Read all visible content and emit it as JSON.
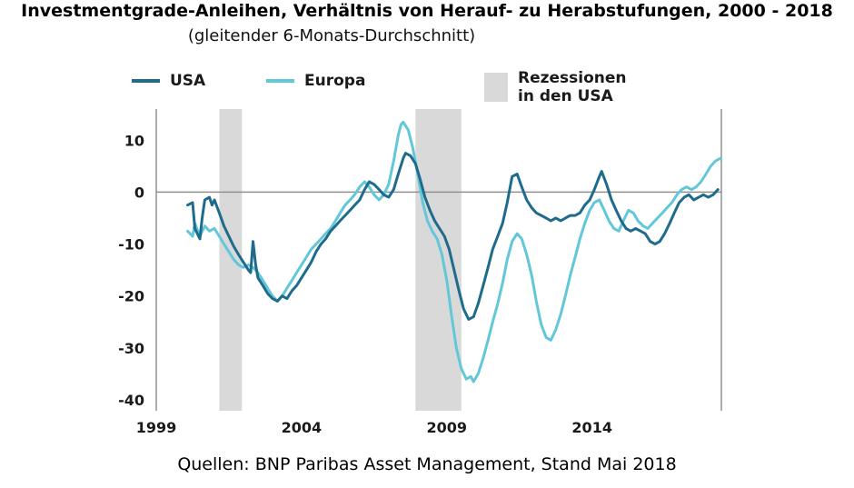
{
  "title": "Investmentgrade-Anleihen, Verhältnis von Herauf- zu Herabstufungen, 2000 - 2018",
  "subtitle": "(gleitender 6-Monats-Durchschnitt)",
  "source": "Quellen: BNP Paribas Asset Management, Stand Mai 2018",
  "legend": {
    "usa": "USA",
    "europa": "Europa",
    "recession_line1": "Rezessionen",
    "recession_line2": "in den USA"
  },
  "colors": {
    "usa": "#1e6b8c",
    "europa": "#62c7d8",
    "recession": "#d9d9d9",
    "axis": "#909090"
  },
  "chart_data": {
    "type": "line",
    "title": "Investmentgrade-Anleihen, Verhältnis von Herauf- zu Herabstufungen, 2000 - 2018",
    "subtitle": "(gleitender 6-Monats-Durchschnitt)",
    "xlabel": "",
    "ylabel": "",
    "xlim": [
      1999,
      2018.45
    ],
    "ylim": [
      -40,
      16
    ],
    "x_ticks": [
      1999,
      2004,
      2009,
      2014
    ],
    "y_ticks": [
      10,
      0,
      -10,
      -20,
      -30,
      -40
    ],
    "grid": false,
    "legend_position": "top",
    "recessions_usa": [
      [
        2001.17,
        2001.95
      ],
      [
        2007.92,
        2009.5
      ]
    ],
    "series": [
      {
        "name": "USA",
        "color": "#1e6b8c",
        "points": [
          [
            2000.08,
            -2.5
          ],
          [
            2000.25,
            -2
          ],
          [
            2000.33,
            -7
          ],
          [
            2000.5,
            -9
          ],
          [
            2000.58,
            -5
          ],
          [
            2000.67,
            -1.5
          ],
          [
            2000.83,
            -1
          ],
          [
            2000.92,
            -2.5
          ],
          [
            2001.0,
            -1.5
          ],
          [
            2001.17,
            -4
          ],
          [
            2001.33,
            -6.5
          ],
          [
            2001.5,
            -8.5
          ],
          [
            2001.67,
            -10.5
          ],
          [
            2001.83,
            -12
          ],
          [
            2002.0,
            -13.5
          ],
          [
            2002.17,
            -15
          ],
          [
            2002.25,
            -15.5
          ],
          [
            2002.33,
            -9.5
          ],
          [
            2002.42,
            -14
          ],
          [
            2002.5,
            -16.5
          ],
          [
            2002.67,
            -18
          ],
          [
            2002.83,
            -19.5
          ],
          [
            2003.0,
            -20.5
          ],
          [
            2003.17,
            -21
          ],
          [
            2003.33,
            -20
          ],
          [
            2003.5,
            -20.5
          ],
          [
            2003.67,
            -19
          ],
          [
            2003.83,
            -18
          ],
          [
            2004.0,
            -16.5
          ],
          [
            2004.17,
            -15
          ],
          [
            2004.33,
            -13.5
          ],
          [
            2004.5,
            -11.5
          ],
          [
            2004.67,
            -10
          ],
          [
            2004.83,
            -9
          ],
          [
            2005.0,
            -7.5
          ],
          [
            2005.17,
            -6.5
          ],
          [
            2005.33,
            -5.5
          ],
          [
            2005.5,
            -4.5
          ],
          [
            2005.67,
            -3.5
          ],
          [
            2005.83,
            -2.5
          ],
          [
            2006.0,
            -1.5
          ],
          [
            2006.17,
            0.5
          ],
          [
            2006.33,
            2
          ],
          [
            2006.5,
            1.5
          ],
          [
            2006.67,
            0.5
          ],
          [
            2006.83,
            -0.5
          ],
          [
            2007.0,
            -1
          ],
          [
            2007.17,
            0.5
          ],
          [
            2007.33,
            3.5
          ],
          [
            2007.5,
            6.5
          ],
          [
            2007.58,
            7.5
          ],
          [
            2007.75,
            7
          ],
          [
            2007.92,
            5.5
          ],
          [
            2008.08,
            2.5
          ],
          [
            2008.25,
            -1
          ],
          [
            2008.42,
            -3.5
          ],
          [
            2008.58,
            -5.5
          ],
          [
            2008.75,
            -7
          ],
          [
            2008.92,
            -8.5
          ],
          [
            2009.08,
            -11
          ],
          [
            2009.25,
            -15
          ],
          [
            2009.42,
            -19
          ],
          [
            2009.58,
            -22.5
          ],
          [
            2009.75,
            -24.5
          ],
          [
            2009.92,
            -24
          ],
          [
            2010.08,
            -21.5
          ],
          [
            2010.25,
            -18
          ],
          [
            2010.42,
            -14.5
          ],
          [
            2010.58,
            -11
          ],
          [
            2010.75,
            -8.5
          ],
          [
            2010.92,
            -6
          ],
          [
            2011.08,
            -2
          ],
          [
            2011.25,
            3
          ],
          [
            2011.42,
            3.5
          ],
          [
            2011.58,
            1
          ],
          [
            2011.75,
            -1.5
          ],
          [
            2011.92,
            -3
          ],
          [
            2012.08,
            -4
          ],
          [
            2012.25,
            -4.5
          ],
          [
            2012.42,
            -5
          ],
          [
            2012.58,
            -5.5
          ],
          [
            2012.75,
            -5
          ],
          [
            2012.92,
            -5.5
          ],
          [
            2013.08,
            -5
          ],
          [
            2013.25,
            -4.5
          ],
          [
            2013.42,
            -4.5
          ],
          [
            2013.58,
            -4
          ],
          [
            2013.75,
            -2.5
          ],
          [
            2013.92,
            -1.5
          ],
          [
            2014.08,
            0.5
          ],
          [
            2014.25,
            3
          ],
          [
            2014.33,
            4
          ],
          [
            2014.5,
            1.5
          ],
          [
            2014.67,
            -1.5
          ],
          [
            2014.83,
            -3.5
          ],
          [
            2015.0,
            -5.5
          ],
          [
            2015.17,
            -7
          ],
          [
            2015.33,
            -7.5
          ],
          [
            2015.5,
            -7
          ],
          [
            2015.67,
            -7.5
          ],
          [
            2015.83,
            -8
          ],
          [
            2016.0,
            -9.5
          ],
          [
            2016.17,
            -10
          ],
          [
            2016.33,
            -9.5
          ],
          [
            2016.5,
            -8
          ],
          [
            2016.67,
            -6
          ],
          [
            2016.83,
            -4
          ],
          [
            2017.0,
            -2
          ],
          [
            2017.17,
            -1
          ],
          [
            2017.33,
            -0.5
          ],
          [
            2017.5,
            -1.5
          ],
          [
            2017.67,
            -1
          ],
          [
            2017.83,
            -0.5
          ],
          [
            2018.0,
            -1
          ],
          [
            2018.17,
            -0.5
          ],
          [
            2018.33,
            0.5
          ]
        ]
      },
      {
        "name": "Europa",
        "color": "#62c7d8",
        "points": [
          [
            2000.08,
            -7.5
          ],
          [
            2000.25,
            -8.5
          ],
          [
            2000.33,
            -6
          ],
          [
            2000.5,
            -8.5
          ],
          [
            2000.67,
            -6.5
          ],
          [
            2000.83,
            -7.5
          ],
          [
            2001.0,
            -7
          ],
          [
            2001.17,
            -8.5
          ],
          [
            2001.33,
            -10
          ],
          [
            2001.5,
            -11.5
          ],
          [
            2001.67,
            -13
          ],
          [
            2001.83,
            -14
          ],
          [
            2002.0,
            -14.5
          ],
          [
            2002.17,
            -14
          ],
          [
            2002.33,
            -14.5
          ],
          [
            2002.5,
            -15.5
          ],
          [
            2002.67,
            -17
          ],
          [
            2002.83,
            -18.5
          ],
          [
            2003.0,
            -20
          ],
          [
            2003.17,
            -21
          ],
          [
            2003.33,
            -20
          ],
          [
            2003.5,
            -18.5
          ],
          [
            2003.67,
            -17
          ],
          [
            2003.83,
            -15.5
          ],
          [
            2004.0,
            -14
          ],
          [
            2004.17,
            -12.5
          ],
          [
            2004.33,
            -11
          ],
          [
            2004.5,
            -10
          ],
          [
            2004.67,
            -9
          ],
          [
            2004.83,
            -8
          ],
          [
            2005.0,
            -7
          ],
          [
            2005.17,
            -5.5
          ],
          [
            2005.33,
            -4
          ],
          [
            2005.5,
            -2.5
          ],
          [
            2005.67,
            -1.5
          ],
          [
            2005.83,
            -0.5
          ],
          [
            2006.0,
            1
          ],
          [
            2006.17,
            2
          ],
          [
            2006.33,
            1
          ],
          [
            2006.5,
            -0.5
          ],
          [
            2006.67,
            -1.5
          ],
          [
            2006.83,
            -0.5
          ],
          [
            2007.0,
            1.5
          ],
          [
            2007.17,
            6
          ],
          [
            2007.33,
            11
          ],
          [
            2007.42,
            13
          ],
          [
            2007.5,
            13.5
          ],
          [
            2007.67,
            12
          ],
          [
            2007.83,
            8.5
          ],
          [
            2008.0,
            3.5
          ],
          [
            2008.17,
            -2
          ],
          [
            2008.33,
            -5.5
          ],
          [
            2008.5,
            -7.5
          ],
          [
            2008.67,
            -9
          ],
          [
            2008.83,
            -12
          ],
          [
            2009.0,
            -17
          ],
          [
            2009.17,
            -24
          ],
          [
            2009.33,
            -30
          ],
          [
            2009.5,
            -34
          ],
          [
            2009.67,
            -36
          ],
          [
            2009.83,
            -35.5
          ],
          [
            2009.92,
            -36.5
          ],
          [
            2010.08,
            -35
          ],
          [
            2010.25,
            -32
          ],
          [
            2010.42,
            -28.5
          ],
          [
            2010.58,
            -25
          ],
          [
            2010.75,
            -21.5
          ],
          [
            2010.92,
            -17.5
          ],
          [
            2011.08,
            -13
          ],
          [
            2011.25,
            -9.5
          ],
          [
            2011.42,
            -8
          ],
          [
            2011.58,
            -9
          ],
          [
            2011.75,
            -12
          ],
          [
            2011.92,
            -16
          ],
          [
            2012.08,
            -21
          ],
          [
            2012.25,
            -25.5
          ],
          [
            2012.42,
            -28
          ],
          [
            2012.58,
            -28.5
          ],
          [
            2012.75,
            -26.5
          ],
          [
            2012.92,
            -23.5
          ],
          [
            2013.08,
            -20
          ],
          [
            2013.25,
            -16
          ],
          [
            2013.42,
            -12.5
          ],
          [
            2013.58,
            -9
          ],
          [
            2013.75,
            -6
          ],
          [
            2013.92,
            -3.5
          ],
          [
            2014.08,
            -2
          ],
          [
            2014.25,
            -1.5
          ],
          [
            2014.42,
            -3.5
          ],
          [
            2014.58,
            -5.5
          ],
          [
            2014.75,
            -7
          ],
          [
            2014.92,
            -7.5
          ],
          [
            2015.08,
            -5.5
          ],
          [
            2015.25,
            -3.5
          ],
          [
            2015.42,
            -4
          ],
          [
            2015.58,
            -5.5
          ],
          [
            2015.75,
            -6.5
          ],
          [
            2015.92,
            -7
          ],
          [
            2016.08,
            -6
          ],
          [
            2016.25,
            -5
          ],
          [
            2016.42,
            -4
          ],
          [
            2016.58,
            -3
          ],
          [
            2016.75,
            -2
          ],
          [
            2016.92,
            -0.5
          ],
          [
            2017.08,
            0.5
          ],
          [
            2017.25,
            1
          ],
          [
            2017.42,
            0.5
          ],
          [
            2017.58,
            1
          ],
          [
            2017.75,
            2
          ],
          [
            2017.92,
            3.5
          ],
          [
            2018.08,
            5
          ],
          [
            2018.25,
            6
          ],
          [
            2018.42,
            6.5
          ]
        ]
      }
    ]
  }
}
